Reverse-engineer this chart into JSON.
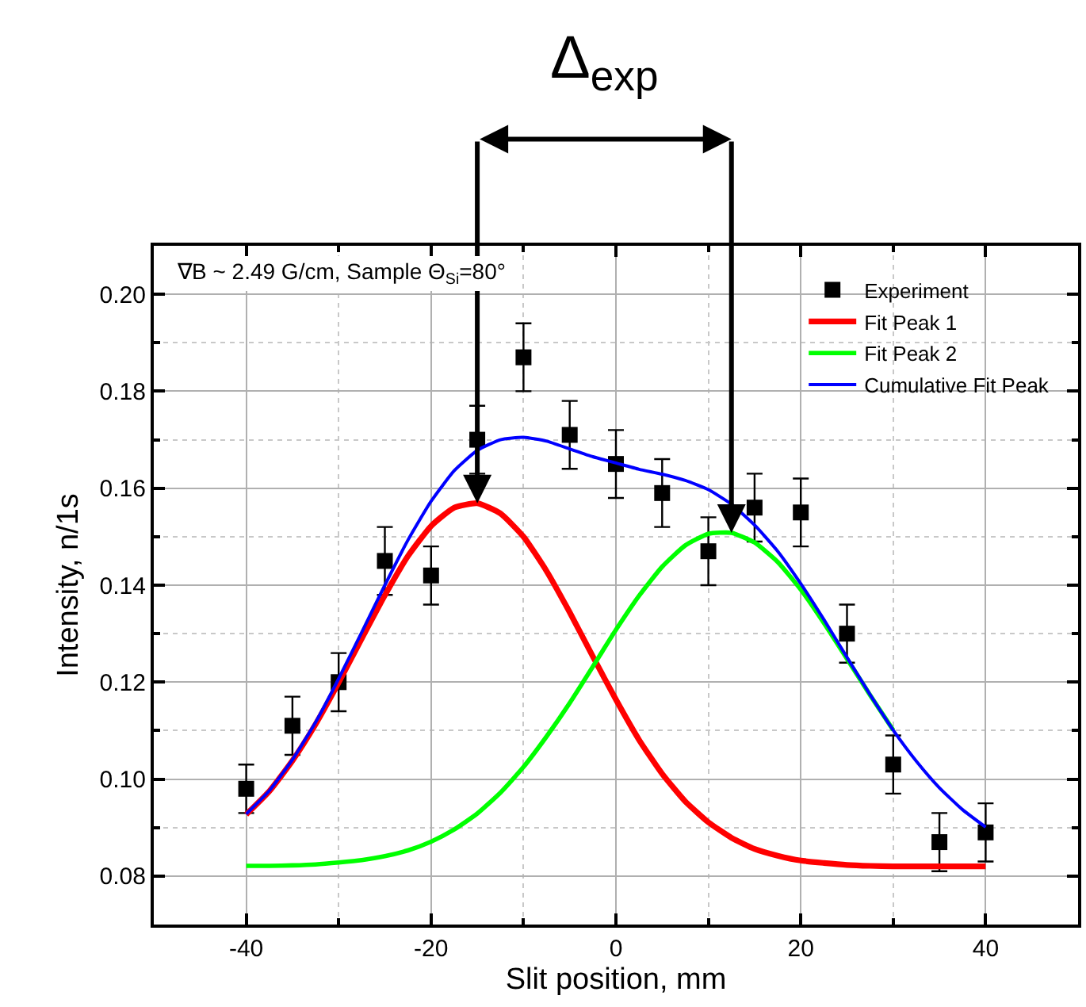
{
  "chart_data": {
    "type": "line",
    "xlabel": "Slit position, mm",
    "ylabel": "Intensity, n/1s",
    "annotations": [
      "∇B ~ 2.49 G/cm, Sample Θ$_{Si}$=80°",
      "Δ$_{exp}$"
    ],
    "xlim": [
      -50,
      50
    ],
    "xticks": [
      -40,
      -20,
      0,
      20,
      40
    ],
    "ylim": [
      0.07,
      0.21
    ],
    "yticks": [
      {
        "value": 0.08,
        "label": "0.08"
      },
      {
        "value": 0.1,
        "label": "0.10"
      },
      {
        "value": 0.12,
        "label": "0.12"
      },
      {
        "value": 0.14,
        "label": "0.14"
      },
      {
        "value": 0.16,
        "label": "0.16"
      },
      {
        "value": 0.18,
        "label": "0.18"
      },
      {
        "value": 0.2,
        "label": "0.20"
      }
    ],
    "grid": true,
    "legend": "top right",
    "series": [
      {
        "name": "Experiment",
        "type": "scatter",
        "marker": "square",
        "color": "#000000",
        "x": [
          -40,
          -35,
          -30,
          -25,
          -20,
          -15,
          -10,
          -5,
          0,
          5,
          10,
          15,
          20,
          25,
          30,
          35,
          40
        ],
        "values": [
          0.098,
          0.111,
          0.12,
          0.145,
          0.142,
          0.17,
          0.187,
          0.171,
          0.165,
          0.159,
          0.147,
          0.156,
          0.155,
          0.13,
          0.103,
          0.087,
          0.089
        ],
        "errors": [
          0.005,
          0.006,
          0.006,
          0.007,
          0.006,
          0.007,
          0.007,
          0.007,
          0.007,
          0.007,
          0.007,
          0.007,
          0.007,
          0.006,
          0.006,
          0.006,
          0.006
        ]
      },
      {
        "name": "Fit Peak 1",
        "marker": "none",
        "color": "#ff0000",
        "x": [
          -40,
          -37.5,
          -35,
          -32.5,
          -30,
          -27.5,
          -25,
          -22.5,
          -20,
          -17.5,
          -15,
          -12.5,
          -10,
          -7.5,
          -5,
          -2.5,
          0,
          2.5,
          5,
          7.5,
          10,
          12.5,
          15,
          17.5,
          20,
          22.5,
          25,
          27.5,
          30,
          32.5,
          35,
          37.5,
          40
        ],
        "values": [
          0.0927,
          0.0975,
          0.1038,
          0.1113,
          0.1199,
          0.129,
          0.1379,
          0.146,
          0.1522,
          0.156,
          0.1569,
          0.1548,
          0.15,
          0.1429,
          0.1344,
          0.1253,
          0.1164,
          0.1081,
          0.1011,
          0.0954,
          0.0911,
          0.0879,
          0.0856,
          0.0842,
          0.0832,
          0.0827,
          0.0823,
          0.0821,
          0.082,
          0.082,
          0.082,
          0.082,
          0.082
        ]
      },
      {
        "name": "Fit Peak 2",
        "marker": "none",
        "color": "#00ff00",
        "x": [
          -40,
          -37.5,
          -35,
          -32.5,
          -30,
          -27.5,
          -25,
          -22.5,
          -20,
          -17.5,
          -15,
          -12.5,
          -10,
          -7.5,
          -5,
          -2.5,
          0,
          2.5,
          5,
          7.5,
          10,
          12.5,
          15,
          17.5,
          20,
          22.5,
          25,
          27.5,
          30
        ],
        "values": [
          0.0821,
          0.0821,
          0.0822,
          0.0824,
          0.0828,
          0.0833,
          0.0841,
          0.0853,
          0.0871,
          0.0896,
          0.0929,
          0.0972,
          0.1025,
          0.1088,
          0.1157,
          0.1232,
          0.1308,
          0.1378,
          0.1438,
          0.1482,
          0.1506,
          0.1508,
          0.1488,
          0.1448,
          0.1391,
          0.1322,
          0.1248,
          0.1173,
          0.1101
        ]
      },
      {
        "name": "Cumulative Fit Peak",
        "marker": "none",
        "color": "#0000ff",
        "x": [
          -40,
          -37.5,
          -35,
          -32.5,
          -30,
          -27.5,
          -25,
          -22.5,
          -20,
          -17.5,
          -15,
          -12.5,
          -10,
          -7.5,
          -5,
          -2.5,
          0,
          2.5,
          5,
          7.5,
          10,
          12.5,
          15,
          17.5,
          20,
          22.5,
          25,
          27.5,
          30,
          32.5,
          35,
          37.5,
          40
        ],
        "values": [
          0.0928,
          0.0976,
          0.104,
          0.1117,
          0.1207,
          0.1303,
          0.14,
          0.1493,
          0.1573,
          0.1636,
          0.1678,
          0.17,
          0.1705,
          0.1697,
          0.1681,
          0.1665,
          0.1652,
          0.1639,
          0.1629,
          0.1616,
          0.1597,
          0.1567,
          0.1524,
          0.147,
          0.1403,
          0.1329,
          0.1251,
          0.1174,
          0.1101,
          0.1037,
          0.0982,
          0.0937,
          0.0901
        ]
      }
    ]
  }
}
